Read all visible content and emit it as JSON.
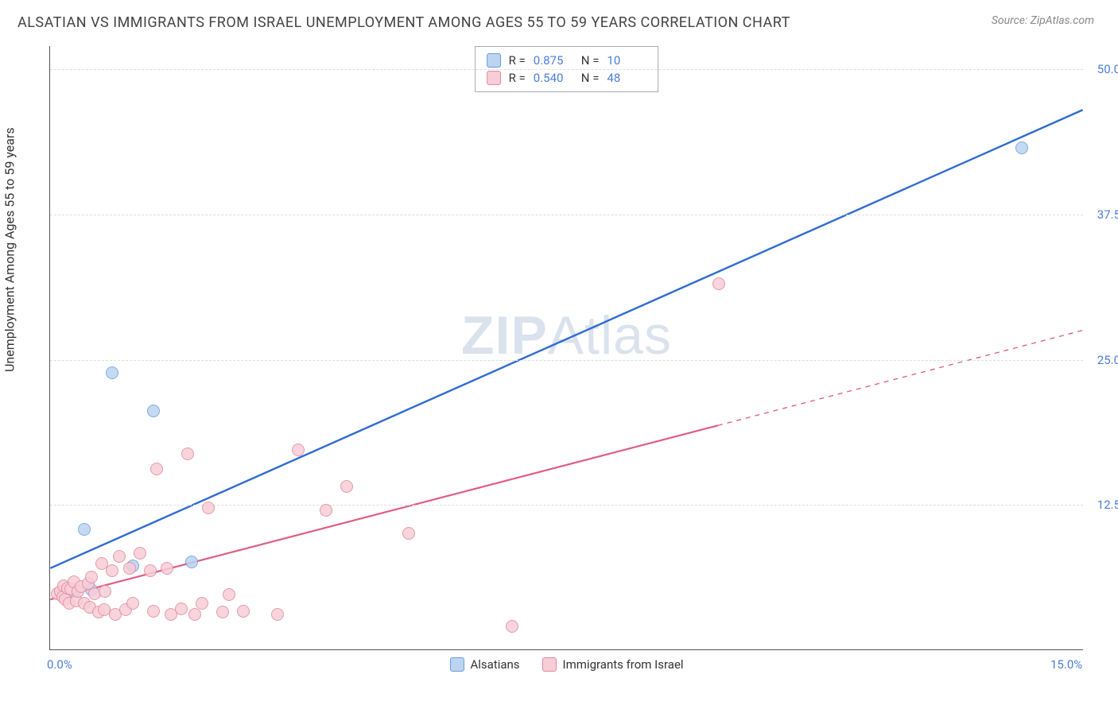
{
  "header": {
    "title": "ALSATIAN VS IMMIGRANTS FROM ISRAEL UNEMPLOYMENT AMONG AGES 55 TO 59 YEARS CORRELATION CHART",
    "source_label": "Source: ",
    "source_name": "ZipAtlas.com"
  },
  "chart": {
    "type": "scatter",
    "ylabel": "Unemployment Among Ages 55 to 59 years",
    "watermark_a": "ZIP",
    "watermark_b": "Atlas",
    "xlim": [
      0,
      15
    ],
    "ylim": [
      0,
      52
    ],
    "xticks": [
      {
        "v": 0.0,
        "label": "0.0%"
      },
      {
        "v": 15.0,
        "label": "15.0%"
      }
    ],
    "yticks": [
      {
        "v": 12.5,
        "label": "12.5%"
      },
      {
        "v": 25.0,
        "label": "25.0%"
      },
      {
        "v": 37.5,
        "label": "37.5%"
      },
      {
        "v": 50.0,
        "label": "50.0%"
      }
    ],
    "grid_color": "#dddddd",
    "background_color": "#ffffff",
    "marker_radius": 8,
    "marker_stroke_width": 1.2,
    "series": [
      {
        "id": "alsatians",
        "label": "Alsatians",
        "color_fill": "#bcd4f0",
        "color_stroke": "#6a9de0",
        "trend_color": "#2f6bd0",
        "trend_width": 2.4,
        "trend_dash_extend": false,
        "R": "0.875",
        "N": "10",
        "data_extent_x": 15.0,
        "trend": {
          "x1": 0.0,
          "y1": 7.0,
          "x2": 15.0,
          "y2": 46.5
        },
        "points": [
          {
            "x": 0.2,
            "y": 5.0
          },
          {
            "x": 0.3,
            "y": 5.2
          },
          {
            "x": 0.35,
            "y": 5.0
          },
          {
            "x": 0.5,
            "y": 10.3
          },
          {
            "x": 0.6,
            "y": 5.1
          },
          {
            "x": 0.9,
            "y": 23.8
          },
          {
            "x": 1.2,
            "y": 7.2
          },
          {
            "x": 1.5,
            "y": 20.5
          },
          {
            "x": 2.05,
            "y": 7.5
          },
          {
            "x": 14.1,
            "y": 43.2
          }
        ]
      },
      {
        "id": "israel",
        "label": "Immigrants from Israel",
        "color_fill": "#f7cdd7",
        "color_stroke": "#e08aa0",
        "trend_color": "#df5d7e",
        "trend_width": 2.2,
        "trend_dash_extend": true,
        "R": "0.540",
        "N": "48",
        "data_extent_x": 9.7,
        "trend": {
          "x1": 0.0,
          "y1": 4.3,
          "x2": 15.0,
          "y2": 27.5
        },
        "points": [
          {
            "x": 0.1,
            "y": 4.8
          },
          {
            "x": 0.15,
            "y": 5.0
          },
          {
            "x": 0.18,
            "y": 4.5
          },
          {
            "x": 0.2,
            "y": 5.5
          },
          {
            "x": 0.22,
            "y": 4.3
          },
          {
            "x": 0.25,
            "y": 5.3
          },
          {
            "x": 0.28,
            "y": 4.0
          },
          {
            "x": 0.3,
            "y": 5.2
          },
          {
            "x": 0.35,
            "y": 5.8
          },
          {
            "x": 0.38,
            "y": 4.2
          },
          {
            "x": 0.4,
            "y": 5.0
          },
          {
            "x": 0.45,
            "y": 5.4
          },
          {
            "x": 0.5,
            "y": 4.0
          },
          {
            "x": 0.55,
            "y": 5.7
          },
          {
            "x": 0.58,
            "y": 3.6
          },
          {
            "x": 0.6,
            "y": 6.2
          },
          {
            "x": 0.65,
            "y": 4.8
          },
          {
            "x": 0.7,
            "y": 3.2
          },
          {
            "x": 0.75,
            "y": 7.4
          },
          {
            "x": 0.78,
            "y": 3.4
          },
          {
            "x": 0.8,
            "y": 5.0
          },
          {
            "x": 0.9,
            "y": 6.8
          },
          {
            "x": 0.95,
            "y": 3.0
          },
          {
            "x": 1.0,
            "y": 8.0
          },
          {
            "x": 1.1,
            "y": 3.4
          },
          {
            "x": 1.15,
            "y": 7.0
          },
          {
            "x": 1.2,
            "y": 4.0
          },
          {
            "x": 1.3,
            "y": 8.3
          },
          {
            "x": 1.45,
            "y": 6.8
          },
          {
            "x": 1.5,
            "y": 3.3
          },
          {
            "x": 1.55,
            "y": 15.5
          },
          {
            "x": 1.7,
            "y": 7.0
          },
          {
            "x": 1.75,
            "y": 3.0
          },
          {
            "x": 1.9,
            "y": 3.5
          },
          {
            "x": 2.0,
            "y": 16.8
          },
          {
            "x": 2.1,
            "y": 3.0
          },
          {
            "x": 2.2,
            "y": 4.0
          },
          {
            "x": 2.3,
            "y": 12.2
          },
          {
            "x": 2.5,
            "y": 3.2
          },
          {
            "x": 2.6,
            "y": 4.7
          },
          {
            "x": 2.8,
            "y": 3.3
          },
          {
            "x": 3.3,
            "y": 3.0
          },
          {
            "x": 3.6,
            "y": 17.2
          },
          {
            "x": 4.0,
            "y": 12.0
          },
          {
            "x": 4.3,
            "y": 14.0
          },
          {
            "x": 5.2,
            "y": 10.0
          },
          {
            "x": 6.7,
            "y": 2.0
          },
          {
            "x": 9.7,
            "y": 31.5
          }
        ]
      }
    ],
    "legend_stats_title_r": "R  =",
    "legend_stats_title_n": "N  ="
  }
}
